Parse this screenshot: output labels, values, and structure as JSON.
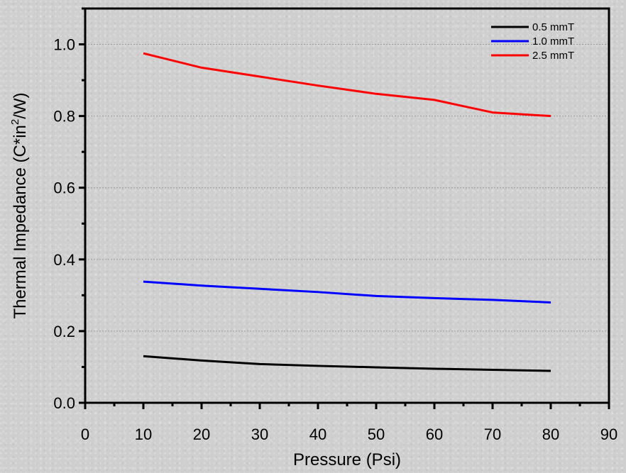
{
  "chart_data": {
    "type": "line",
    "xlabel": "Pressure (Psi)",
    "ylabel_main": "Thermal Impedance (C*in",
    "ylabel_sup": "2",
    "ylabel_end": "/W)",
    "xlim": [
      0,
      90
    ],
    "ylim": [
      0,
      1.1
    ],
    "x_ticks": [
      0,
      10,
      20,
      30,
      40,
      50,
      60,
      70,
      80,
      90
    ],
    "y_ticks": [
      0.0,
      0.2,
      0.4,
      0.6,
      0.8,
      1.0
    ],
    "y_tick_labels": [
      "0.0",
      "0.2",
      "0.4",
      "0.6",
      "0.8",
      "1.0"
    ],
    "grid": true,
    "legend_position": "top-right",
    "x": [
      10,
      20,
      30,
      40,
      50,
      60,
      70,
      80
    ],
    "series": [
      {
        "name": "0.5 mmT",
        "color": "#000000",
        "values": [
          0.13,
          0.118,
          0.108,
          0.103,
          0.099,
          0.095,
          0.092,
          0.089
        ]
      },
      {
        "name": "1.0 mmT",
        "color": "#0000ff",
        "values": [
          0.338,
          0.327,
          0.318,
          0.309,
          0.298,
          0.292,
          0.287,
          0.28
        ]
      },
      {
        "name": "2.5 mmT",
        "color": "#ff0000",
        "values": [
          0.975,
          0.935,
          0.91,
          0.885,
          0.862,
          0.845,
          0.81,
          0.8
        ]
      }
    ]
  }
}
